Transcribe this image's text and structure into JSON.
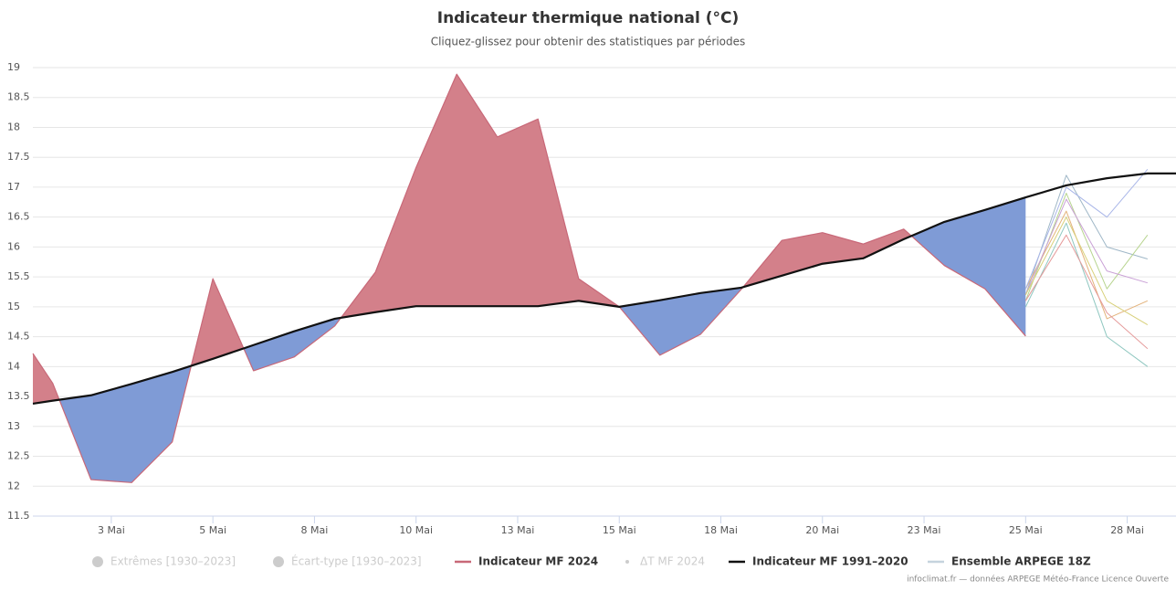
{
  "chart_data": {
    "type": "line",
    "title": "Indicateur thermique national (°C)",
    "subtitle": "Cliquez-glissez pour obtenir des statistiques par périodes",
    "credit": "infoclimat.fr — données ARPEGE Météo-France Licence Ouverte",
    "x": [
      1.07,
      1.56,
      2.5,
      3.5,
      4.5,
      5.5,
      6.5,
      7.5,
      8.5,
      9.5,
      10.5,
      11.5,
      12.5,
      13.5,
      14.5,
      15.5,
      16.5,
      17.5,
      18.5,
      19.5,
      20.5,
      21.5,
      22.5,
      23.5,
      24.5,
      25.5,
      26.5,
      27.5,
      28.5,
      29.2
    ],
    "series": [
      {
        "name": "Indicateur MF 2024",
        "color": "#c86878",
        "above_color": "#d3808a",
        "below_color": "#7f9bd6",
        "values": [
          14.22,
          13.72,
          12.11,
          12.06,
          12.74,
          15.47,
          13.93,
          14.16,
          14.68,
          15.58,
          17.33,
          18.89,
          17.84,
          18.14,
          15.47,
          15.0,
          14.19,
          14.54,
          15.29,
          16.11,
          16.24,
          16.05,
          16.3,
          15.69,
          15.3,
          14.51,
          null,
          null,
          null,
          null
        ]
      },
      {
        "name": "Indicateur MF 1991–2020",
        "color": "#111111",
        "values": [
          13.38,
          13.43,
          13.52,
          13.71,
          13.91,
          14.13,
          14.36,
          14.59,
          14.8,
          14.91,
          15.01,
          15.01,
          15.01,
          15.01,
          15.1,
          15.0,
          15.11,
          15.23,
          15.32,
          15.52,
          15.72,
          15.81,
          16.13,
          16.42,
          16.62,
          16.83,
          17.03,
          17.15,
          17.23,
          17.23
        ]
      }
    ],
    "ensemble": {
      "name": "Ensemble ARPEGE 18Z",
      "color": "#c5d3de",
      "x": [
        25.5,
        26.5,
        27.5,
        28.5
      ],
      "member_colors": [
        "#9fb7c7",
        "#b7d48f",
        "#e3b27a",
        "#8fc7c0",
        "#c9a0d6",
        "#e59a9a",
        "#a9b6e8",
        "#d8d07a"
      ],
      "members": [
        [
          15.2,
          17.2,
          16.0,
          15.8
        ],
        [
          15.1,
          16.9,
          15.3,
          16.2
        ],
        [
          15.3,
          16.6,
          14.8,
          15.1
        ],
        [
          15.0,
          16.4,
          14.5,
          14.0
        ],
        [
          15.2,
          16.8,
          15.6,
          15.4
        ],
        [
          15.1,
          16.2,
          14.9,
          14.3
        ],
        [
          15.3,
          17.0,
          16.5,
          17.3
        ],
        [
          15.2,
          16.5,
          15.1,
          14.7
        ]
      ]
    },
    "inactive_legend": [
      "Extrêmes [1930–2023]",
      "Écart-type [1930–2023]",
      "ΔT MF 2024"
    ],
    "xlim": [
      1.07,
      29.2
    ],
    "xticks": [
      {
        "value": 3,
        "label": "3 Mai"
      },
      {
        "value": 5.5,
        "label": "5 Mai"
      },
      {
        "value": 8,
        "label": "8 Mai"
      },
      {
        "value": 10.5,
        "label": "10 Mai"
      },
      {
        "value": 13,
        "label": "13 Mai"
      },
      {
        "value": 15.5,
        "label": "15 Mai"
      },
      {
        "value": 18,
        "label": "18 Mai"
      },
      {
        "value": 20.5,
        "label": "20 Mai"
      },
      {
        "value": 23,
        "label": "23 Mai"
      },
      {
        "value": 25.5,
        "label": "25 Mai"
      },
      {
        "value": 28,
        "label": "28 Mai"
      }
    ],
    "ylim": [
      11.5,
      19
    ],
    "yticks": [
      11.5,
      12,
      12.5,
      13,
      13.5,
      14,
      14.5,
      15,
      15.5,
      16,
      16.5,
      17,
      17.5,
      18,
      18.5,
      19
    ],
    "grid": true
  }
}
